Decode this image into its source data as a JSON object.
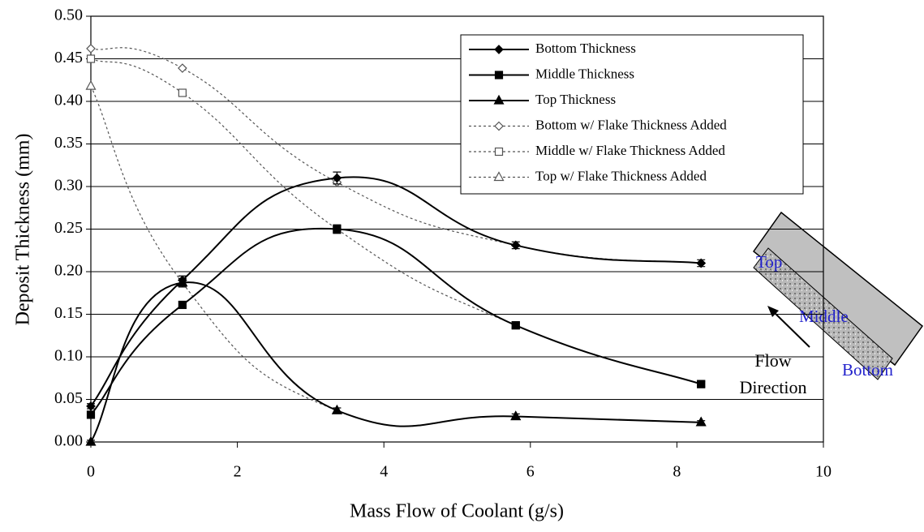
{
  "chart_data": {
    "type": "line",
    "x_label": "Mass Flow of Coolant (g/s)",
    "y_label": "Deposit Thickness (mm)",
    "xlim": [
      0,
      10
    ],
    "xticks": [
      0,
      2,
      4,
      6,
      8,
      10
    ],
    "ylim": [
      0,
      0.5
    ],
    "yticks": [
      {
        "value": 0,
        "label": "0.00"
      },
      {
        "value": 0.05,
        "label": "0.05"
      },
      {
        "value": 0.1,
        "label": "0.10"
      },
      {
        "value": 0.15,
        "label": "0.15"
      },
      {
        "value": 0.2,
        "label": "0.20"
      },
      {
        "value": 0.25,
        "label": "0.25"
      },
      {
        "value": 0.3,
        "label": "0.30"
      },
      {
        "value": 0.35,
        "label": "0.35"
      },
      {
        "value": 0.4,
        "label": "0.40"
      },
      {
        "value": 0.45,
        "label": "0.45"
      },
      {
        "value": 0.5,
        "label": "0.50"
      }
    ],
    "grid": true,
    "series": [
      {
        "name": "Bottom Thickness",
        "color": "#000000",
        "marker": "diamond",
        "filled": true,
        "dashed": false,
        "x": [
          0,
          1.25,
          3.36,
          5.8,
          8.33
        ],
        "values": [
          0.042,
          0.19,
          0.31,
          0.231,
          0.21
        ],
        "errors": [
          0.003,
          0.005,
          0.007,
          0.004,
          0.004
        ]
      },
      {
        "name": "Middle Thickness",
        "color": "#000000",
        "marker": "square",
        "filled": true,
        "dashed": false,
        "x": [
          0,
          1.25,
          3.36,
          5.8,
          8.33
        ],
        "values": [
          0.032,
          0.161,
          0.25,
          0.137,
          0.068
        ],
        "errors": [
          0.003,
          0.004,
          0.005,
          0.003,
          0.003
        ]
      },
      {
        "name": "Top Thickness",
        "color": "#000000",
        "marker": "triangle",
        "filled": true,
        "dashed": false,
        "x": [
          0,
          1.25,
          3.36,
          5.8,
          8.33
        ],
        "values": [
          0,
          0.187,
          0.037,
          0.03,
          0.023
        ],
        "errors": [
          0.002,
          0.005,
          0.003,
          0.003,
          0.002
        ]
      },
      {
        "name": "Bottom w/ Flake Thickness Added",
        "color": "#555555",
        "marker": "diamond",
        "filled": false,
        "dashed": true,
        "x": [
          0,
          1.25,
          3.36,
          5.8,
          8.33
        ],
        "values": [
          0.462,
          0.439,
          0.305,
          0.231,
          0.21
        ]
      },
      {
        "name": "Middle w/ Flake Thickness Added",
        "color": "#555555",
        "marker": "square",
        "filled": false,
        "dashed": true,
        "x": [
          0,
          1.25,
          3.36,
          5.8,
          8.33
        ],
        "values": [
          0.45,
          0.41,
          0.25,
          0.137,
          0.068
        ]
      },
      {
        "name": "Top w/ Flake Thickness Added",
        "color": "#555555",
        "marker": "triangle",
        "filled": false,
        "dashed": true,
        "x": [
          0,
          1.25,
          3.36,
          5.8,
          8.33
        ],
        "values": [
          0.418,
          0.187,
          0.037,
          0.03,
          0.023
        ]
      }
    ],
    "annotations": {
      "top": "Top",
      "middle": "Middle",
      "bottom": "Bottom",
      "flow": "Flow",
      "direction": "Direction"
    }
  }
}
